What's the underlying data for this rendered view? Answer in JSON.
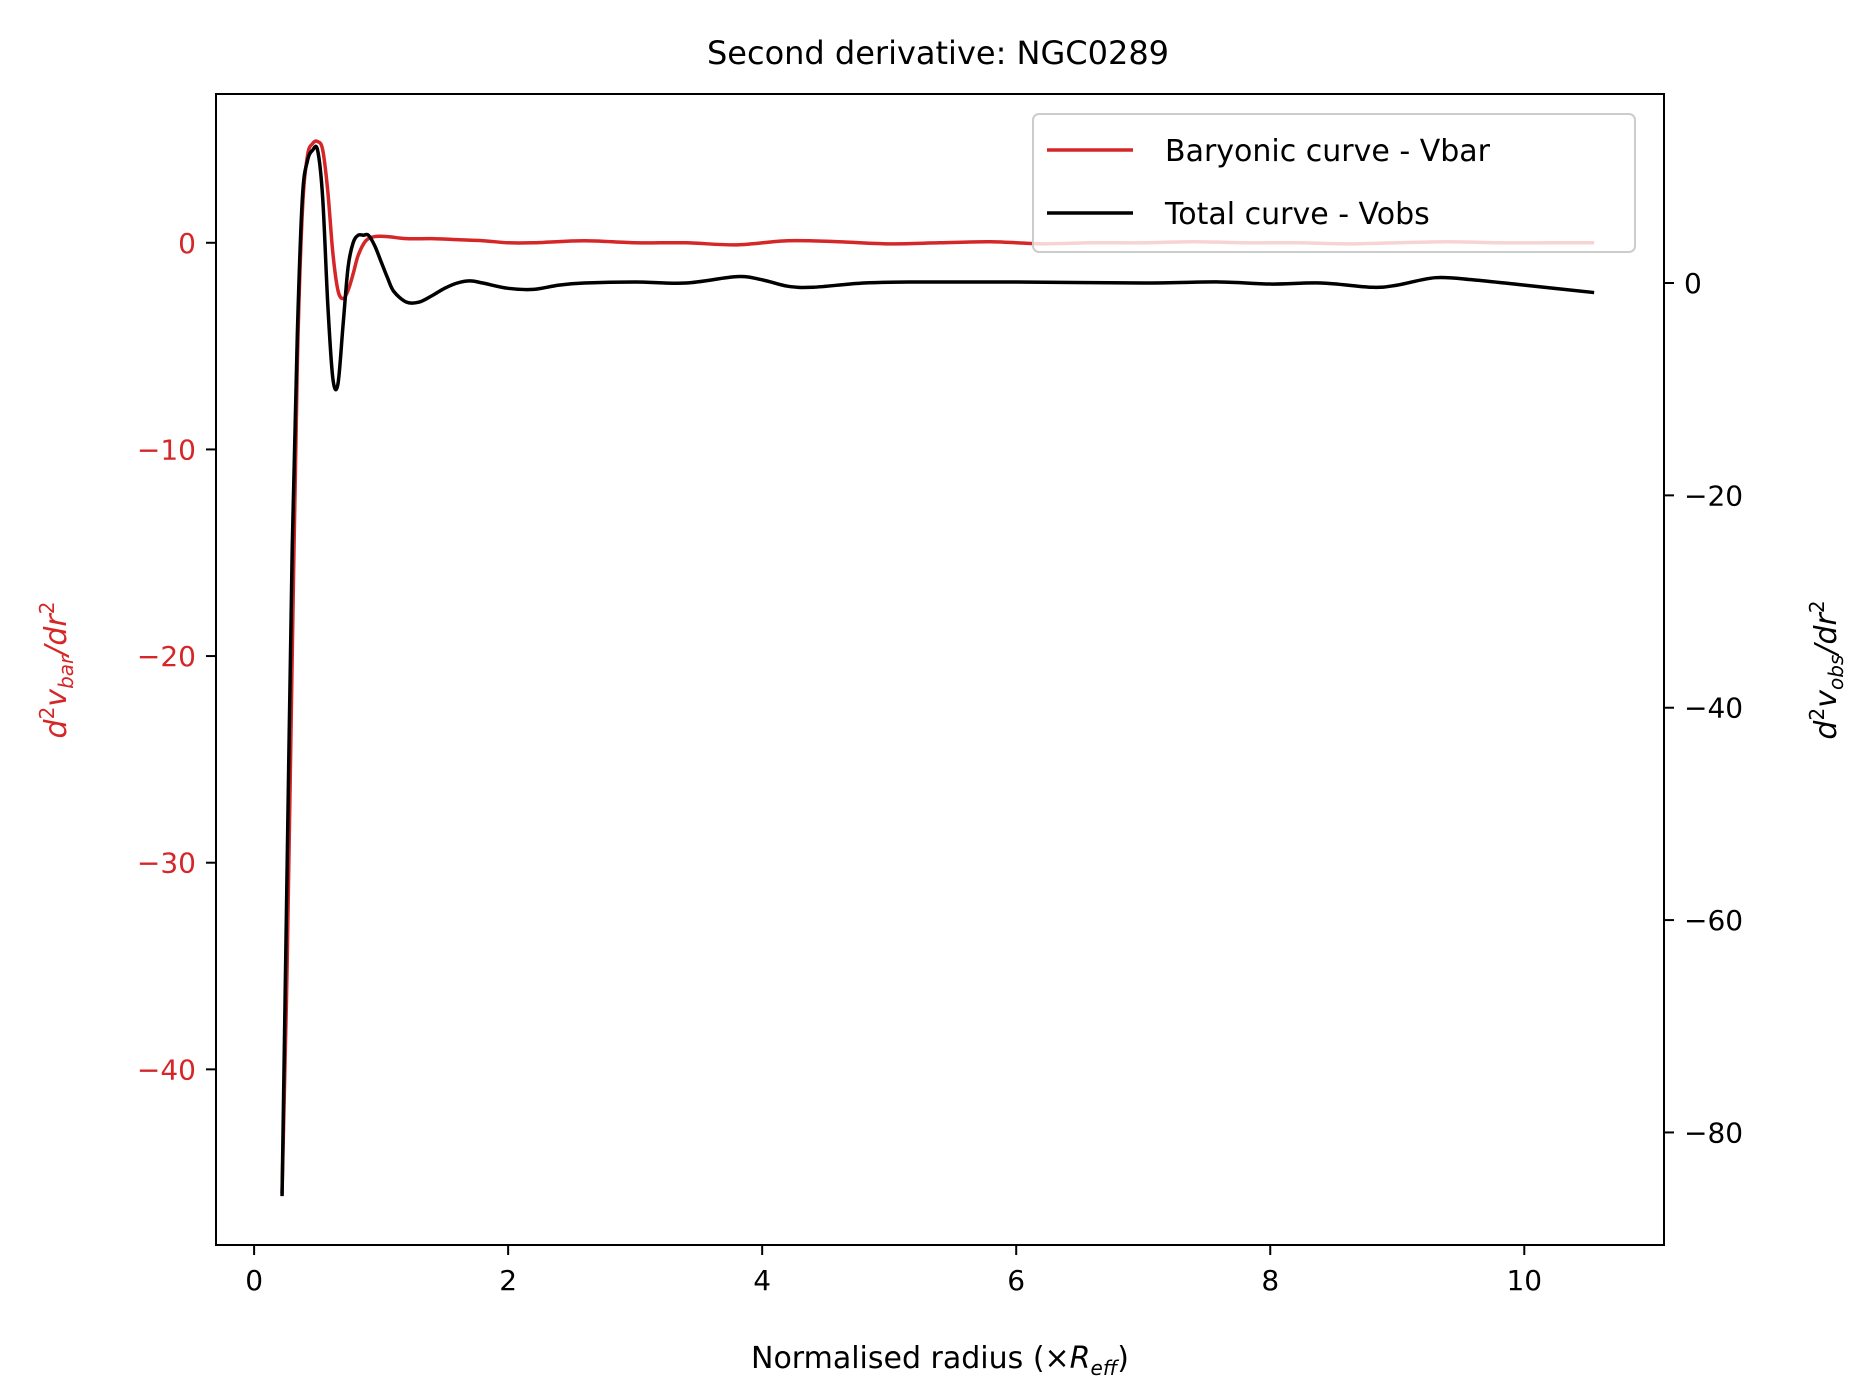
{
  "chart_data": {
    "type": "line",
    "title": "Second derivative: NGC0289",
    "xlabel": {
      "main": "Normalised radius (×",
      "var": "R",
      "sub": "eff",
      "close": ")"
    },
    "ylabel_left": {
      "pre": "d",
      "sup": "2",
      "var": "v",
      "sub": "bar",
      "post": "/dr",
      "sup2": "2"
    },
    "ylabel_right": {
      "pre": "d",
      "sup": "2",
      "var": "v",
      "sub": "obs",
      "post": "/dr",
      "sup2": "2"
    },
    "xlim": [
      -0.3,
      11.1
    ],
    "ylim_left": [
      -48.5,
      7.2
    ],
    "ylim_right": [
      -90.6,
      17.8
    ],
    "x_ticks": [
      0,
      2,
      4,
      6,
      8,
      10
    ],
    "x_tick_labels": [
      "0",
      "2",
      "4",
      "6",
      "8",
      "10"
    ],
    "y_left_ticks": [
      0,
      -10,
      -20,
      -30,
      -40
    ],
    "y_left_tick_labels": [
      "0",
      "−10",
      "−20",
      "−30",
      "−40"
    ],
    "y_right_ticks": [
      0,
      -20,
      -40,
      -60,
      -80
    ],
    "y_right_tick_labels": [
      "0",
      "−20",
      "−40",
      "−60",
      "−80"
    ],
    "legend_position": "top-right",
    "colors": {
      "bar": "#d62728",
      "obs": "#000000",
      "left_axis": "#d62728",
      "right_axis": "#000000"
    },
    "series": [
      {
        "name": "Baryonic curve - Vbar",
        "axis": "left",
        "x": [
          0.22,
          0.26,
          0.3,
          0.34,
          0.38,
          0.42,
          0.46,
          0.5,
          0.54,
          0.58,
          0.62,
          0.66,
          0.7,
          0.74,
          0.78,
          0.82,
          0.88,
          0.95,
          1.05,
          1.2,
          1.4,
          1.6,
          1.8,
          2.0,
          2.2,
          2.6,
          3.0,
          3.4,
          3.8,
          4.2,
          4.6,
          5.0,
          5.4,
          5.8,
          6.2,
          6.6,
          7.0,
          7.4,
          7.8,
          8.2,
          8.6,
          9.0,
          9.4,
          9.8,
          10.2,
          10.55
        ],
        "y": [
          -46.0,
          -35.0,
          -20.0,
          -6.0,
          1.5,
          4.2,
          4.8,
          4.9,
          4.5,
          2.5,
          -0.5,
          -2.3,
          -2.7,
          -2.3,
          -1.5,
          -0.6,
          0.1,
          0.3,
          0.3,
          0.2,
          0.2,
          0.15,
          0.1,
          0.0,
          0.0,
          0.1,
          0.0,
          0.0,
          -0.1,
          0.1,
          0.05,
          -0.05,
          0.0,
          0.05,
          -0.05,
          0.0,
          0.0,
          0.05,
          0.0,
          0.0,
          -0.05,
          0.0,
          0.05,
          0.0,
          0.0,
          0.0
        ]
      },
      {
        "name": "Total curve - Vobs",
        "axis": "right",
        "x": [
          0.22,
          0.26,
          0.3,
          0.34,
          0.38,
          0.42,
          0.46,
          0.5,
          0.54,
          0.58,
          0.62,
          0.66,
          0.7,
          0.74,
          0.78,
          0.82,
          0.86,
          0.9,
          0.95,
          1.0,
          1.05,
          1.1,
          1.2,
          1.3,
          1.4,
          1.5,
          1.6,
          1.7,
          1.8,
          2.0,
          2.2,
          2.4,
          2.6,
          3.0,
          3.4,
          3.8,
          4.0,
          4.2,
          4.4,
          4.8,
          5.2,
          6.0,
          7.0,
          7.6,
          8.0,
          8.4,
          8.8,
          9.0,
          9.3,
          9.6,
          10.0,
          10.55
        ],
        "y": [
          -86.0,
          -55.0,
          -25.0,
          -5.0,
          8.0,
          11.5,
          12.5,
          12.5,
          8.0,
          -2.0,
          -9.0,
          -9.5,
          -4.0,
          1.5,
          3.8,
          4.5,
          4.5,
          4.5,
          3.5,
          2.0,
          0.5,
          -0.8,
          -1.8,
          -1.8,
          -1.2,
          -0.5,
          0.0,
          0.2,
          0.0,
          -0.5,
          -0.6,
          -0.2,
          0.0,
          0.1,
          0.0,
          0.6,
          0.3,
          -0.3,
          -0.4,
          0.0,
          0.1,
          0.1,
          0.0,
          0.1,
          -0.1,
          0.0,
          -0.4,
          -0.2,
          0.5,
          0.3,
          -0.2,
          -0.9
        ]
      }
    ]
  }
}
